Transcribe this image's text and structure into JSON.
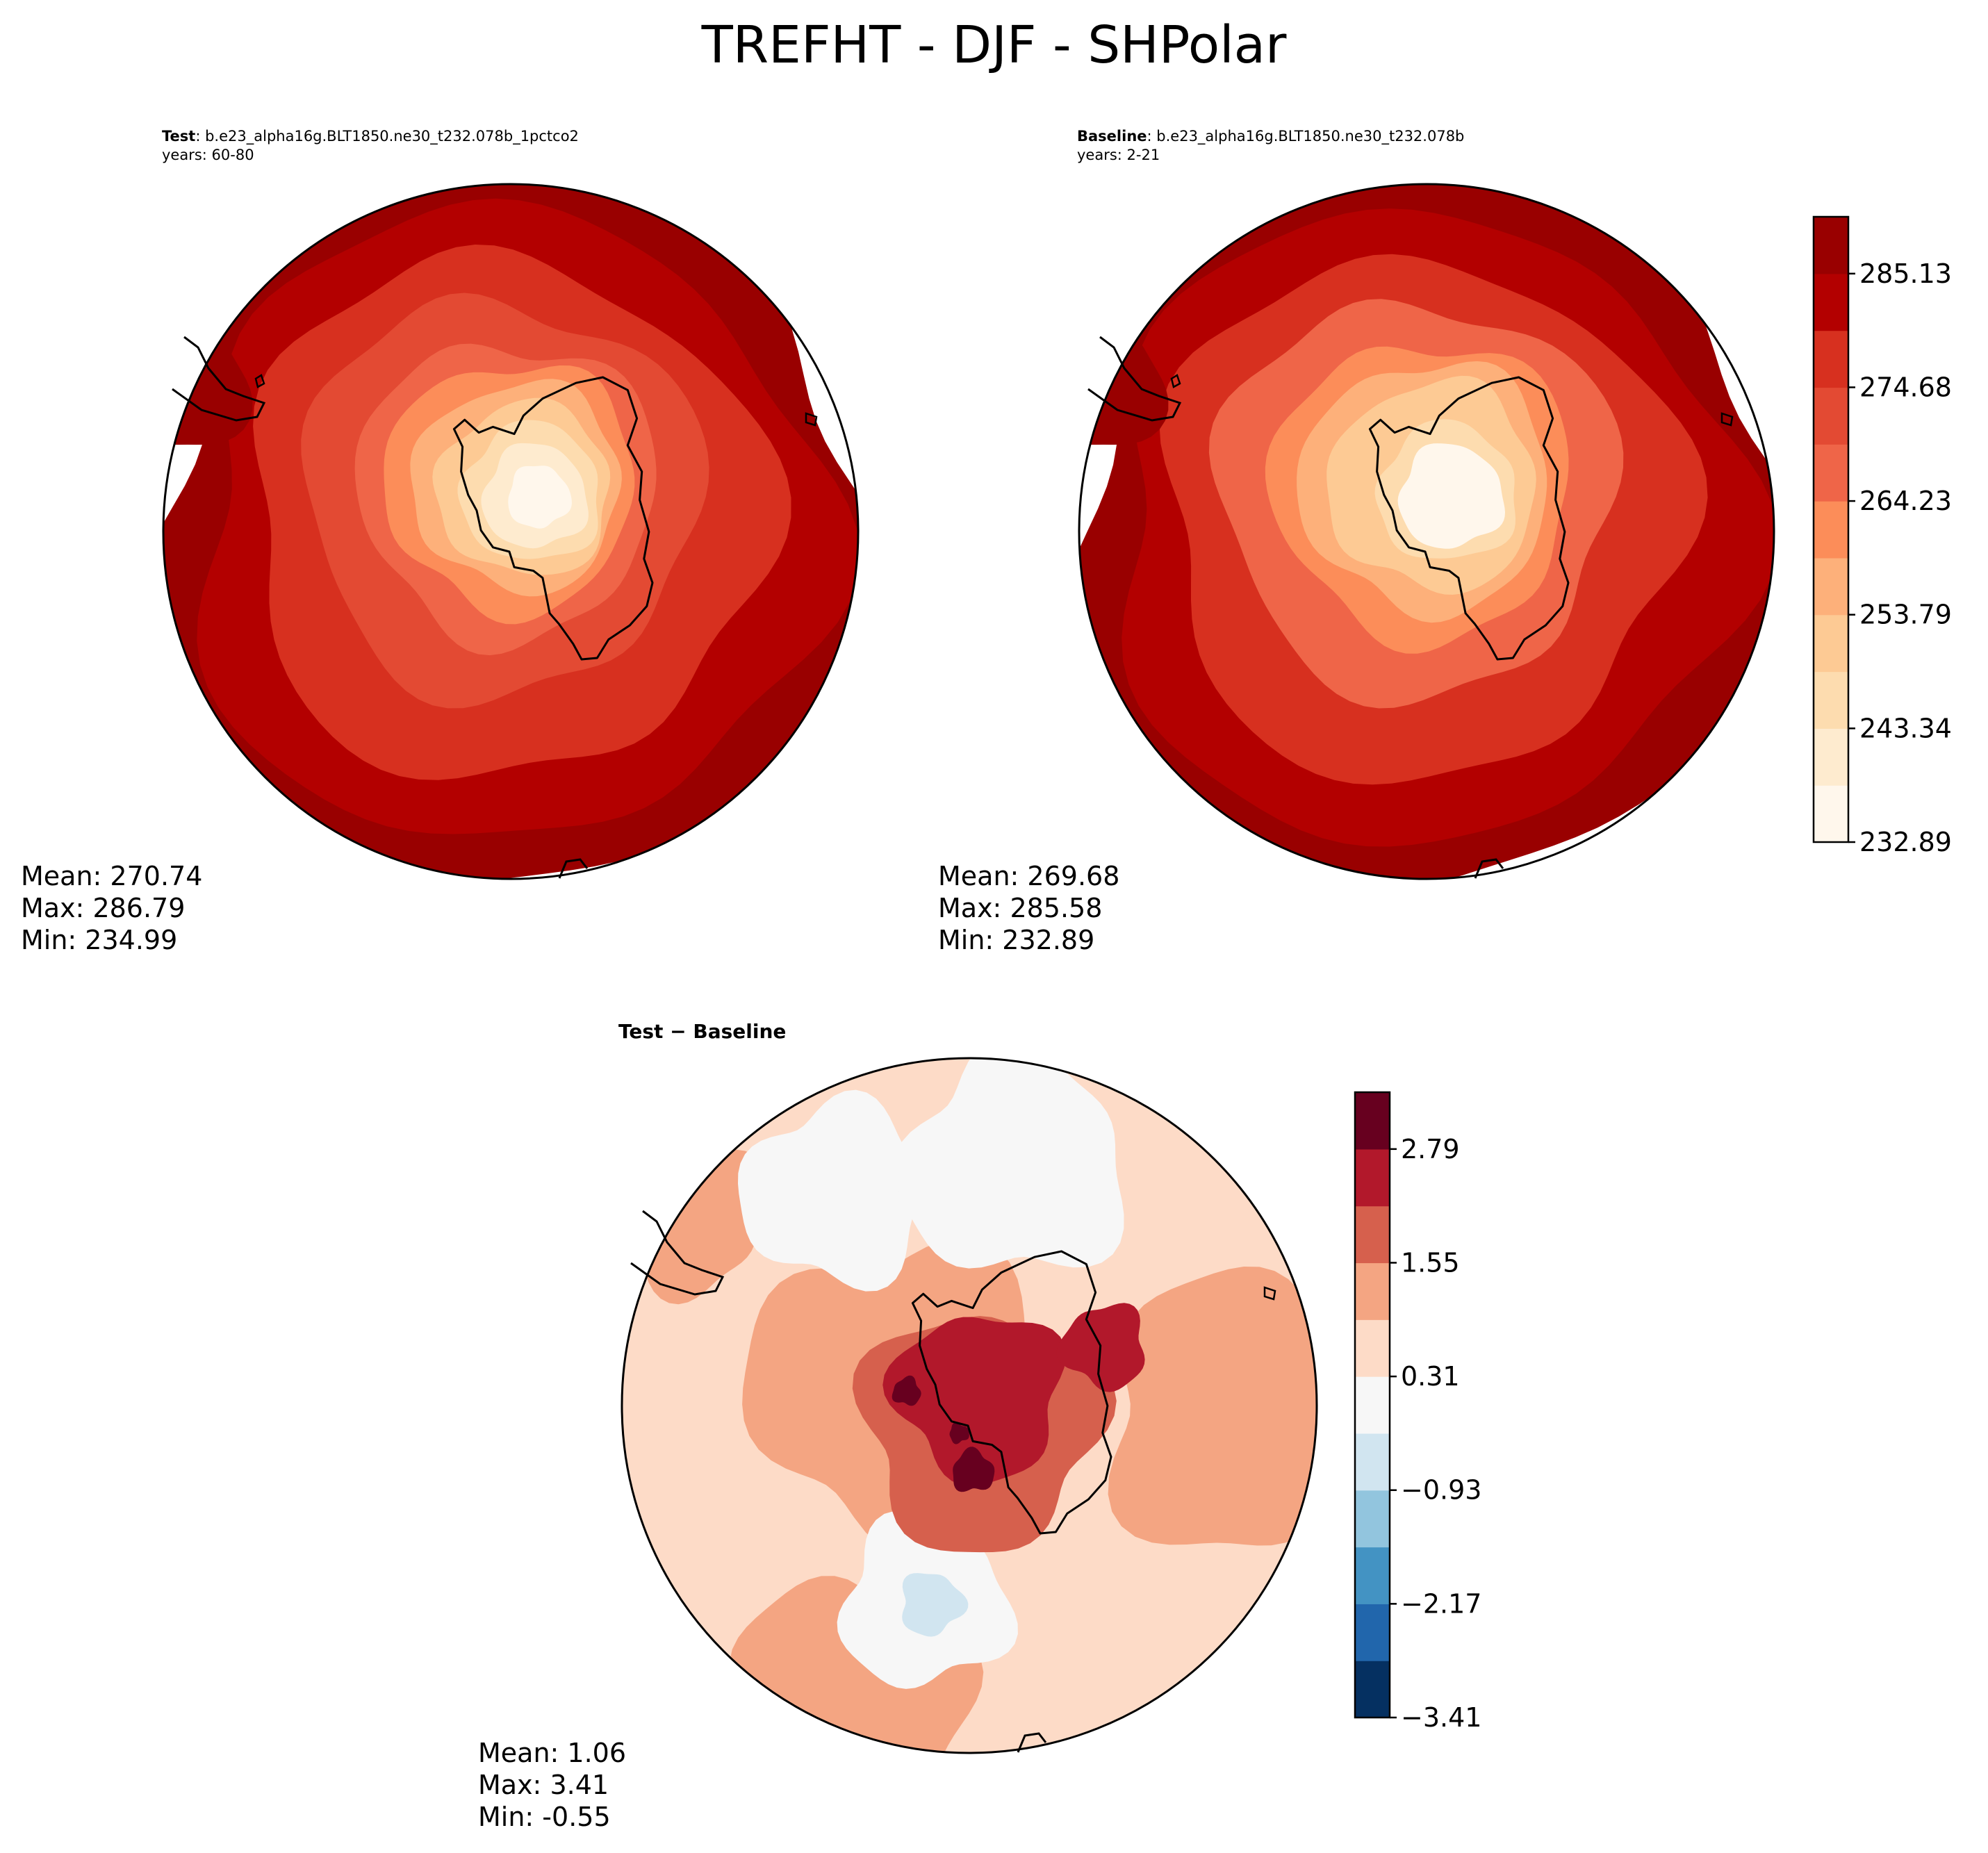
{
  "figure": {
    "title": "TREFHT - DJF - SHPolar"
  },
  "chart_data": [
    {
      "type": "heatmap",
      "projection": "south polar stereographic",
      "label_bold": "Test",
      "label_separator": ":",
      "case_name": "b.e23_alpha16g.BLT1850.ne30_t232.078b_1pctco2",
      "years_text": "years: 60-80",
      "stats": {
        "mean": "Mean: 270.74",
        "max": "Max: 286.79",
        "min": "Min: 234.99"
      },
      "colormap": "OrRd",
      "levels": [
        232.89,
        238.115,
        243.34,
        248.565,
        253.79,
        259.015,
        264.23,
        269.455,
        274.68,
        279.905,
        285.13,
        290.355
      ],
      "field_summary": {
        "pole_value": 234.99,
        "edge_value": 286.79,
        "mean": 270.74
      }
    },
    {
      "type": "heatmap",
      "projection": "south polar stereographic",
      "label_bold": "Baseline",
      "label_separator": ":",
      "case_name": "b.e23_alpha16g.BLT1850.ne30_t232.078b",
      "years_text": "years: 2-21",
      "stats": {
        "mean": "Mean: 269.68",
        "max": "Max: 285.58",
        "min": "Min: 232.89"
      },
      "colormap": "OrRd",
      "levels": [
        232.89,
        238.115,
        243.34,
        248.565,
        253.79,
        259.015,
        264.23,
        269.455,
        274.68,
        279.905,
        285.13,
        290.355
      ],
      "colorbar_ticks": [
        "232.89",
        "243.34",
        "253.79",
        "264.23",
        "274.68",
        "285.13"
      ],
      "colorbar_colors": [
        "#fff7ec",
        "#feebcf",
        "#fddcaf",
        "#fdca94",
        "#fdb07a",
        "#fc8d59",
        "#ef6548",
        "#e34a33",
        "#d7301f",
        "#b30000",
        "#990000"
      ],
      "field_summary": {
        "pole_value": 232.89,
        "edge_value": 285.58,
        "mean": 269.68
      }
    },
    {
      "type": "heatmap",
      "projection": "south polar stereographic",
      "title": "Test − Baseline",
      "stats": {
        "mean": "Mean:  1.06",
        "max": "Max:  3.41",
        "min": "Min: -0.55"
      },
      "colormap": "RdBu_r",
      "levels": [
        -3.41,
        -2.79,
        -2.17,
        -1.55,
        -0.93,
        -0.31,
        0.31,
        0.93,
        1.55,
        2.17,
        2.79,
        3.41
      ],
      "colorbar_ticks": [
        "−3.41",
        "−2.17",
        "−0.93",
        "0.31",
        "1.55",
        "2.79"
      ],
      "colorbar_colors": [
        "#053061",
        "#2166ac",
        "#4393c3",
        "#92c5de",
        "#d1e5f0",
        "#f7f7f7",
        "#fddbc7",
        "#f4a582",
        "#d6604d",
        "#b2182b",
        "#67001f"
      ],
      "field_summary": {
        "mean": 1.06,
        "max": 3.41,
        "min": -0.55
      }
    }
  ]
}
